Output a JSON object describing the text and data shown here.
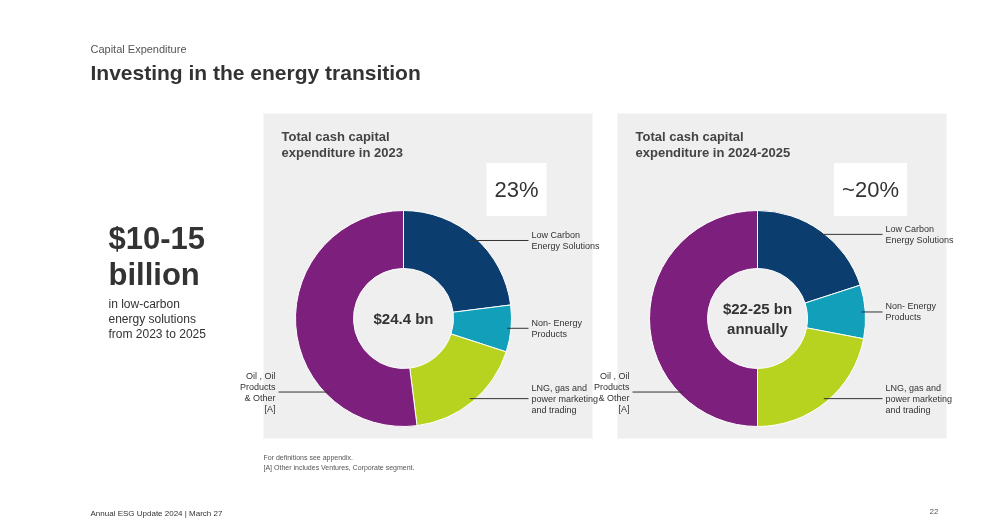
{
  "chart_data": [
    {
      "type": "other",
      "subtitle": "Capital Expenditure",
      "title": "Investing in the energy transition",
      "annotations": [
        "$10-15 billion",
        "in low-carbon energy solutions from 2023 to 2025",
        "For definitions see appendix.",
        "[A]  Other includes Ventures, Corporate segment.",
        "Annual ESG Update 2024  |  March 27",
        "22"
      ]
    },
    {
      "type": "donut",
      "title": "Total cash capital expenditure in 2023",
      "categories": [
        "Low Carbon Energy Solutions",
        "Non- Energy Products",
        "LNG, gas and power marketing and trading",
        "Oil , Oil Products & Other [A]"
      ],
      "values": [
        23,
        7,
        18,
        52
      ],
      "colors": [
        "#0b3d6e",
        "#129fba",
        "#b7d21f",
        "#7d1f7c"
      ],
      "annotations": [
        "23%",
        "$24.4 bn"
      ]
    },
    {
      "type": "donut",
      "title": "Total cash capital expenditure in 2024-2025",
      "categories": [
        "Low Carbon Energy Solutions",
        "Non- Energy Products",
        "LNG, gas and power marketing and trading",
        "Oil , Oil Products & Other [A]"
      ],
      "values": [
        20,
        8,
        22,
        50
      ],
      "colors": [
        "#0b3d6e",
        "#129fba",
        "#b7d21f",
        "#7d1f7c"
      ],
      "annotations": [
        "~20%",
        "$22-25 bn annually"
      ]
    }
  ]
}
